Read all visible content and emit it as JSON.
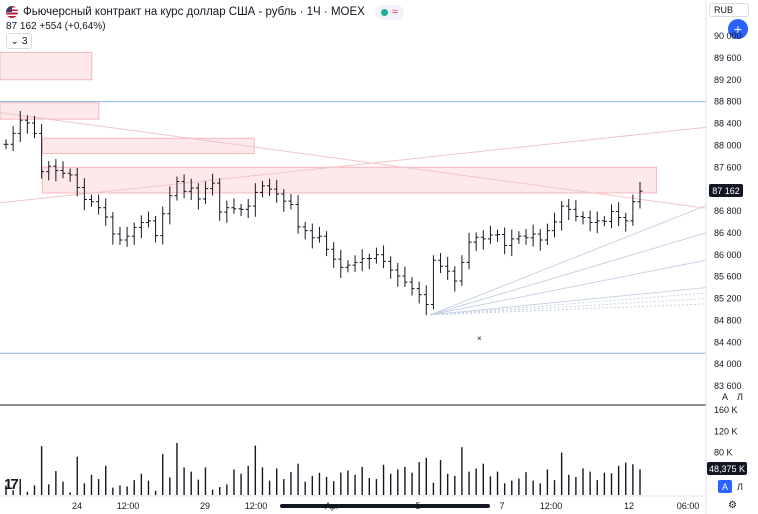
{
  "header": {
    "title": "Фьючерсный контракт на курс доллар США - рубль · 1Ч · MOEX",
    "quote": "87 162",
    "change": "+554 (+0,64%)",
    "collapse_count": "3",
    "status_color": "#22ab94",
    "wave_icon": "≈"
  },
  "toolbar": {
    "currency": "RUB",
    "add_icon": "plus-icon",
    "scale_auto": "A",
    "scale_log": "Л",
    "vol_scale_auto": "A",
    "vol_scale_log": "Л",
    "logo": "tradingview-logo"
  },
  "colors": {
    "bars": "#131722",
    "zone_fill": "#fde8ea",
    "zone_border": "#f7b6bd",
    "hline": "#8fb6e6",
    "accent": "#2962ff"
  },
  "chart_data": {
    "type": "ohlc",
    "ylim": [
      83600,
      90000
    ],
    "yticks": [
      "90 000",
      "89 600",
      "89 200",
      "88 800",
      "88 400",
      "88 000",
      "87 600",
      "87 200",
      "86 800",
      "86 400",
      "86 000",
      "85 600",
      "85 200",
      "84 800",
      "84 400",
      "84 000",
      "83 600"
    ],
    "last_price": 87162,
    "last_price_label": "87 162",
    "xticks": [
      "24",
      "12:00",
      "29",
      "12:00",
      "Apr",
      "5",
      "7",
      "12:00",
      "12",
      "06:00"
    ],
    "horizontal_levels": [
      88800,
      84200
    ],
    "zones": [
      {
        "price_top": 89700,
        "price_bottom": 89200,
        "x_start": 0,
        "x_end": 0.13
      },
      {
        "price_top": 88780,
        "price_bottom": 88480,
        "x_start": 0,
        "x_end": 0.14
      },
      {
        "price_top": 88130,
        "price_bottom": 87850,
        "x_start": 0.06,
        "x_end": 0.36
      },
      {
        "price_top": 87600,
        "price_bottom": 87130,
        "x_start": 0.06,
        "x_end": 0.93
      }
    ],
    "close": [
      88020,
      88220,
      88460,
      88410,
      88220,
      87520,
      87620,
      87540,
      87490,
      87460,
      87230,
      87010,
      86970,
      86860,
      86690,
      86380,
      86270,
      86340,
      86500,
      86590,
      86620,
      86350,
      86750,
      87080,
      87340,
      87160,
      87220,
      87020,
      87210,
      87310,
      86780,
      86860,
      86840,
      86830,
      86890,
      87140,
      87260,
      87200,
      87110,
      86980,
      86920,
      86510,
      86440,
      86310,
      86340,
      86100,
      85920,
      85770,
      85810,
      85860,
      85930,
      85930,
      86000,
      85880,
      85720,
      85610,
      85500,
      85380,
      85270,
      85090,
      85900,
      85790,
      85700,
      85520,
      85860,
      86230,
      86320,
      86290,
      86360,
      86370,
      86170,
      86290,
      86340,
      86310,
      86380,
      86270,
      86440,
      86600,
      86890,
      86830,
      86700,
      86680,
      86590,
      86620,
      86610,
      86790,
      86680,
      86620,
      86970,
      87162
    ],
    "volume_ylim": [
      0,
      160000
    ],
    "volume_ticks": [
      "160 K",
      "120 K",
      "80 K"
    ],
    "volume_last_label": "48,375 K",
    "volume": [
      18000,
      9000,
      30000,
      6000,
      18000,
      92000,
      20000,
      45000,
      25000,
      5000,
      72000,
      22000,
      38000,
      30000,
      55000,
      14000,
      18000,
      16000,
      28000,
      40000,
      27000,
      8000,
      77000,
      33000,
      98000,
      52000,
      44000,
      29000,
      52000,
      10000,
      15000,
      20000,
      48000,
      40000,
      55000,
      93000,
      52000,
      27000,
      50000,
      30000,
      43000,
      59000,
      25000,
      36000,
      42000,
      34000,
      26000,
      42000,
      46000,
      38000,
      53000,
      32000,
      30000,
      57000,
      40000,
      48000,
      53000,
      42000,
      62000,
      70000,
      23000,
      66000,
      40000,
      36000,
      90000,
      44000,
      50000,
      59000,
      35000,
      44000,
      22000,
      27000,
      31000,
      43000,
      27000,
      22000,
      48000,
      28000,
      80000,
      38000,
      34000,
      50000,
      44000,
      28000,
      42000,
      41000,
      55000,
      61000,
      58000,
      48375
    ]
  }
}
